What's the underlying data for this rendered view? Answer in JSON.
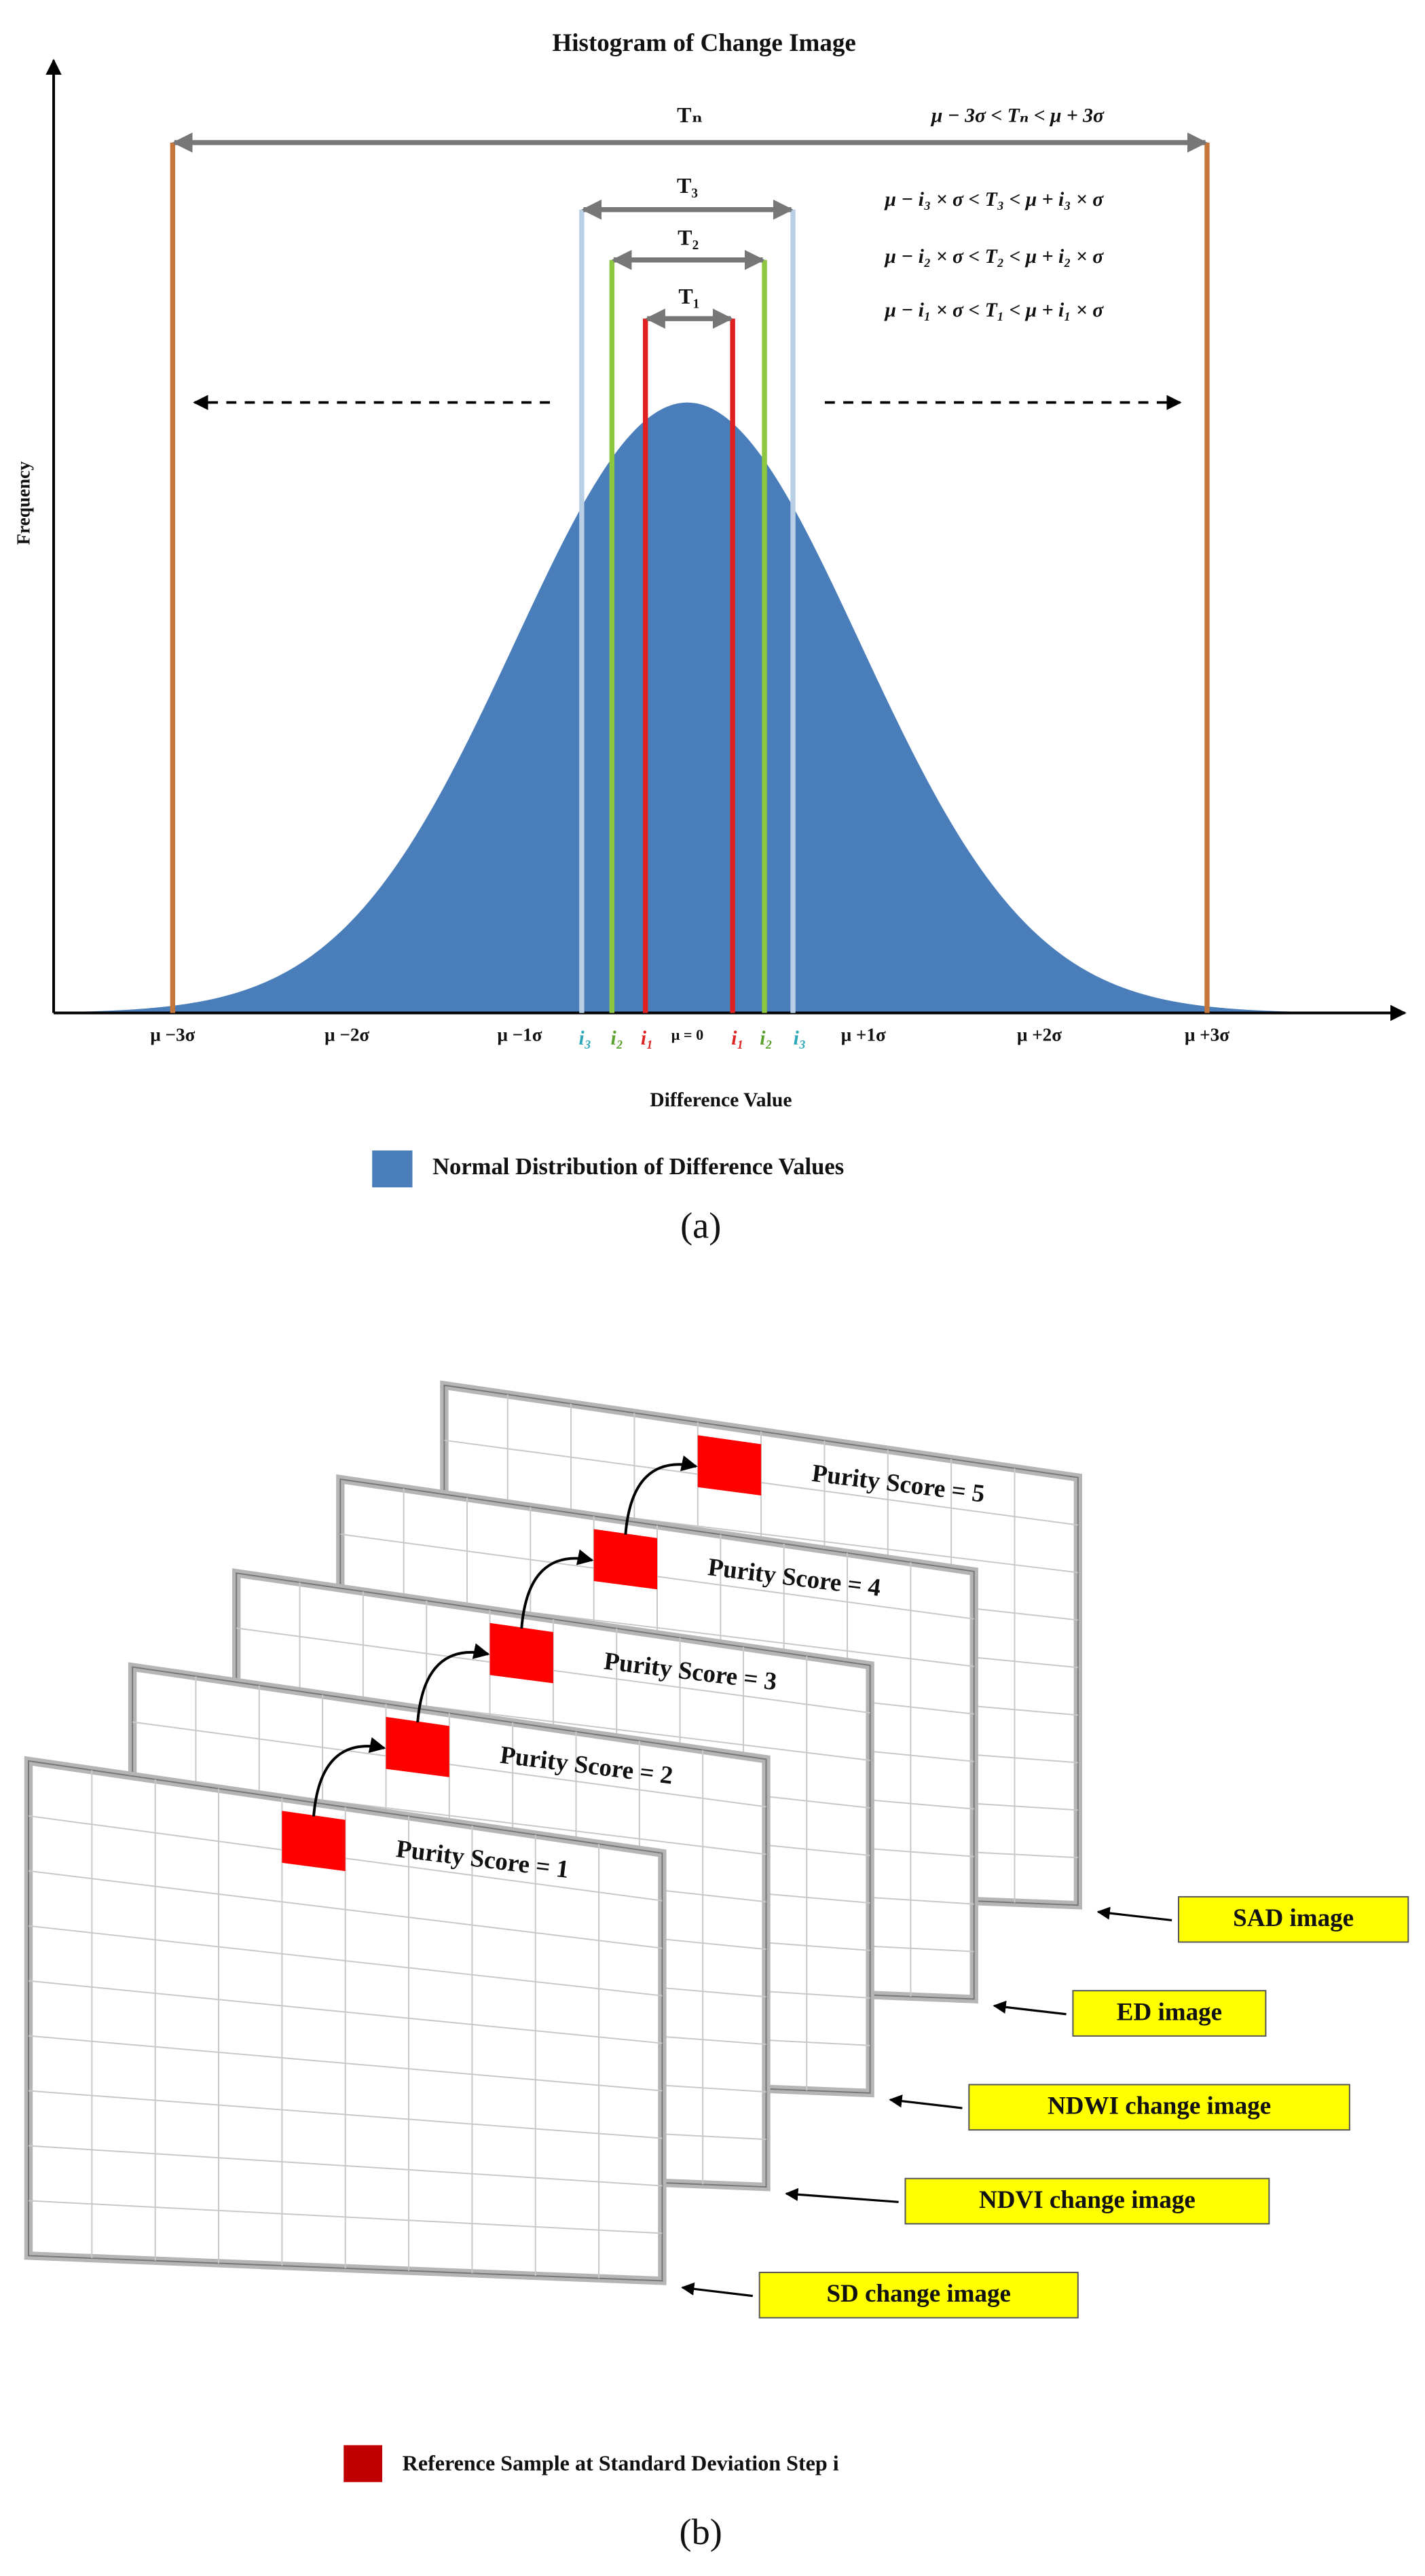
{
  "figure_a": {
    "title": "Histogram of Change Image",
    "y_axis_label": "Frequency",
    "x_axis_label": "Difference Value",
    "x_ticks": [
      "μ −3σ",
      "μ −2σ",
      "μ −1σ",
      "μ = 0",
      "μ +1σ",
      "μ +2σ",
      "μ +3σ"
    ],
    "thresholds": [
      {
        "label": "Tₙ",
        "formula": "μ − 3σ < Tₙ < μ + 3σ"
      },
      {
        "label": "T₃",
        "formula": "μ − i₃ × σ < T₃ < μ + i₃ × σ"
      },
      {
        "label": "T₂",
        "formula": "μ − i₂ × σ < T₂ < μ + i₂ × σ"
      },
      {
        "label": "T₁",
        "formula": "μ − i₁ × σ < T₁ < μ + i₁ × σ"
      }
    ],
    "step_labels": [
      "i₃",
      "i₂",
      "i₁",
      "i₁",
      "i₂",
      "i₃"
    ],
    "legend": "Normal Distribution of Difference Values",
    "caption": "(a)"
  },
  "figure_b": {
    "panels": [
      {
        "score": "Purity Score = 1",
        "image": "SD change image"
      },
      {
        "score": "Purity Score = 2",
        "image": "NDVI change image"
      },
      {
        "score": "Purity Score = 3",
        "image": "NDWI change image"
      },
      {
        "score": "Purity Score = 4",
        "image": "ED image"
      },
      {
        "score": "Purity Score = 5",
        "image": "SAD image"
      }
    ],
    "legend": "Reference Sample at Standard Deviation Step i",
    "caption": "(b)"
  }
}
